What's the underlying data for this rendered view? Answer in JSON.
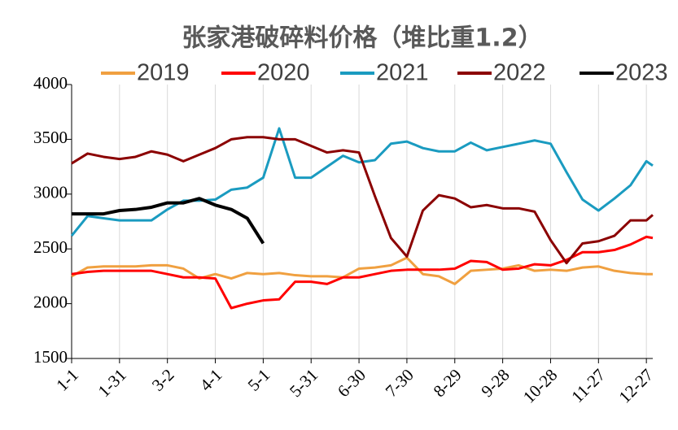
{
  "chart_data": {
    "type": "line",
    "title": "张家港破碎料价格（堆比重1.2）",
    "x": [
      0,
      10,
      20,
      30,
      40,
      50,
      60,
      70,
      80,
      90,
      100,
      110,
      120,
      130,
      140,
      150,
      160,
      170,
      180,
      190,
      200,
      210,
      220,
      230,
      240,
      250,
      260,
      270,
      280,
      290,
      300,
      310,
      320,
      330,
      340,
      350,
      360,
      364
    ],
    "xlim": [
      0,
      364
    ],
    "xticks": [
      {
        "value": 0,
        "label": "1-1"
      },
      {
        "value": 30,
        "label": "1-31"
      },
      {
        "value": 60,
        "label": "3-2"
      },
      {
        "value": 90,
        "label": "4-1"
      },
      {
        "value": 120,
        "label": "5-1"
      },
      {
        "value": 150,
        "label": "5-31"
      },
      {
        "value": 180,
        "label": "6-30"
      },
      {
        "value": 210,
        "label": "7-30"
      },
      {
        "value": 240,
        "label": "8-29"
      },
      {
        "value": 270,
        "label": "9-28"
      },
      {
        "value": 300,
        "label": "10-28"
      },
      {
        "value": 330,
        "label": "11-27"
      },
      {
        "value": 360,
        "label": "12-27"
      }
    ],
    "ylim": [
      1500,
      4000
    ],
    "yticks": [
      1500,
      2000,
      2500,
      3000,
      3500,
      4000
    ],
    "grid": true,
    "legend": "top",
    "series": [
      {
        "name": "2019",
        "color": "#f0a040",
        "values": [
          2250,
          2330,
          2340,
          2340,
          2340,
          2350,
          2350,
          2320,
          2230,
          2270,
          2230,
          2280,
          2270,
          2280,
          2260,
          2250,
          2250,
          2240,
          2320,
          2330,
          2350,
          2420,
          2270,
          2250,
          2180,
          2300,
          2310,
          2320,
          2350,
          2300,
          2310,
          2300,
          2330,
          2340,
          2300,
          2280,
          2270,
          2270
        ]
      },
      {
        "name": "2020",
        "color": "#ff0000",
        "values": [
          2270,
          2290,
          2300,
          2300,
          2300,
          2300,
          2270,
          2240,
          2240,
          2230,
          1960,
          2000,
          2030,
          2040,
          2200,
          2200,
          2180,
          2240,
          2240,
          2270,
          2300,
          2310,
          2310,
          2310,
          2320,
          2390,
          2380,
          2310,
          2320,
          2360,
          2350,
          2400,
          2470,
          2470,
          2490,
          2540,
          2610,
          2600
        ]
      },
      {
        "name": "2021",
        "color": "#1a9bc0",
        "values": [
          2620,
          2800,
          2780,
          2760,
          2760,
          2760,
          2860,
          2940,
          2940,
          2950,
          3040,
          3060,
          3150,
          3600,
          3150,
          3150,
          3250,
          3350,
          3290,
          3310,
          3460,
          3480,
          3420,
          3390,
          3390,
          3470,
          3400,
          3430,
          3460,
          3490,
          3460,
          3200,
          2950,
          2850,
          2960,
          3080,
          3300,
          3260
        ]
      },
      {
        "name": "2022",
        "color": "#8b0000",
        "values": [
          3280,
          3370,
          3340,
          3320,
          3340,
          3390,
          3360,
          3300,
          3360,
          3420,
          3500,
          3520,
          3520,
          3500,
          3500,
          3440,
          3380,
          3400,
          3380,
          2980,
          2600,
          2430,
          2850,
          2990,
          2960,
          2880,
          2900,
          2870,
          2870,
          2840,
          2580,
          2370,
          2550,
          2570,
          2620,
          2760,
          2760,
          2810
        ]
      },
      {
        "name": "2023",
        "color": "#000000",
        "values": [
          2820,
          2820,
          2820,
          2850,
          2860,
          2880,
          2920,
          2920,
          2960,
          2900,
          2860,
          2780,
          2550,
          null,
          null,
          null,
          null,
          null,
          null,
          null,
          null,
          null,
          null,
          null,
          null,
          null,
          null,
          null,
          null,
          null,
          null,
          null,
          null,
          null,
          null,
          null,
          null,
          null
        ]
      }
    ]
  }
}
